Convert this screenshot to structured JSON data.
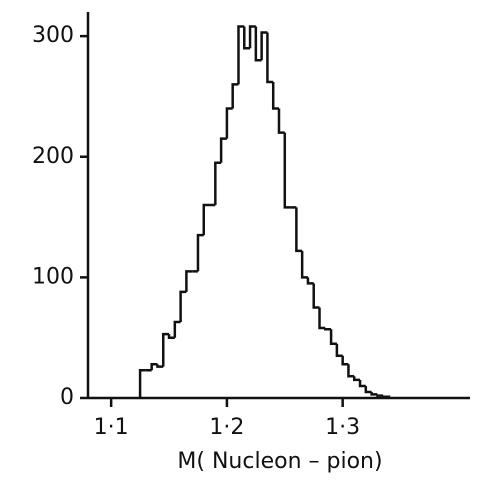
{
  "chart_data": {
    "type": "histogram",
    "x_label": "M( Nucleon – pion)",
    "bins": [
      1.125,
      1.13,
      1.135,
      1.14,
      1.145,
      1.15,
      1.155,
      1.16,
      1.165,
      1.17,
      1.175,
      1.18,
      1.185,
      1.19,
      1.195,
      1.2,
      1.205,
      1.21,
      1.215,
      1.22,
      1.225,
      1.23,
      1.235,
      1.24,
      1.245,
      1.25,
      1.255,
      1.26,
      1.265,
      1.27,
      1.275,
      1.28,
      1.285,
      1.29,
      1.295,
      1.3,
      1.305,
      1.31,
      1.315,
      1.32,
      1.325,
      1.33,
      1.335,
      1.34
    ],
    "values": [
      23,
      23,
      28,
      26,
      53,
      50,
      63,
      88,
      105,
      105,
      135,
      160,
      160,
      195,
      215,
      240,
      260,
      308,
      290,
      308,
      280,
      303,
      262,
      240,
      220,
      158,
      158,
      122,
      100,
      95,
      75,
      58,
      57,
      45,
      35,
      28,
      18,
      15,
      10,
      5,
      3,
      2,
      1
    ],
    "color": "#111111",
    "xlim": [
      1.08,
      1.41
    ],
    "ylim": [
      0,
      320
    ],
    "xticks": [
      {
        "value": 1.1,
        "label": "1·1"
      },
      {
        "value": 1.2,
        "label": "1·2"
      },
      {
        "value": 1.3,
        "label": "1·3"
      }
    ],
    "yticks": [
      0,
      100,
      200,
      300
    ]
  }
}
